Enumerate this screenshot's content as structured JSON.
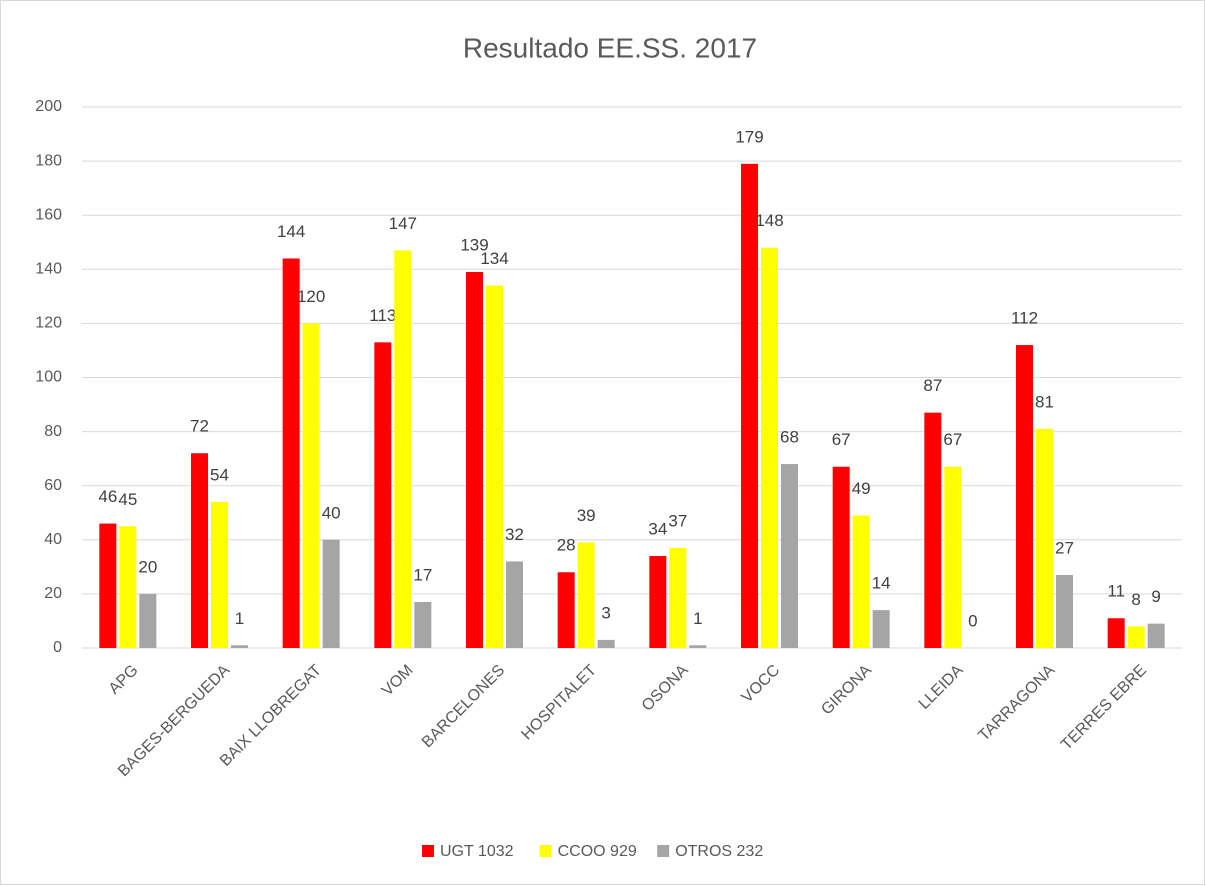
{
  "chart_data": {
    "type": "bar",
    "title": "Resultado EE.SS. 2017",
    "categories": [
      "APG",
      "BAGES-BERGUEDA",
      "BAIX LLOBREGAT",
      "VOM",
      "BARCELONES",
      "HOSPITALET",
      "OSONA",
      "VOCC",
      "GIRONA",
      "LLEIDA",
      "TARRAGONA",
      "TERRES EBRE"
    ],
    "series": [
      {
        "name": "UGT 1032",
        "color": "#ff0000",
        "values": [
          46,
          72,
          144,
          113,
          139,
          28,
          34,
          179,
          67,
          87,
          112,
          11
        ]
      },
      {
        "name": "CCOO 929",
        "color": "#ffff00",
        "values": [
          45,
          54,
          120,
          147,
          134,
          39,
          37,
          148,
          49,
          67,
          81,
          8
        ]
      },
      {
        "name": "OTROS 232",
        "color": "#a5a5a5",
        "values": [
          20,
          1,
          40,
          17,
          32,
          3,
          1,
          68,
          14,
          0,
          27,
          9
        ]
      }
    ],
    "ylim": [
      0,
      200
    ],
    "yticks": [
      0,
      20,
      40,
      60,
      80,
      100,
      120,
      140,
      160,
      180,
      200
    ],
    "grid": true,
    "legend": "bottom"
  }
}
